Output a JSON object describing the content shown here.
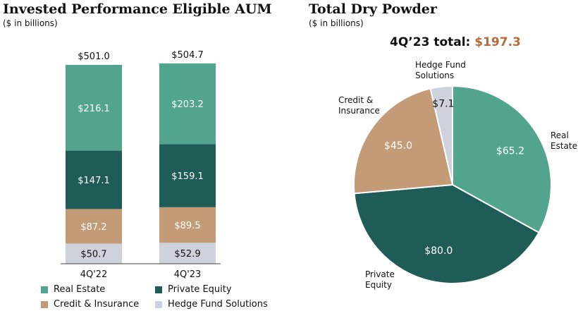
{
  "colors": {
    "real_estate": "#52a48e",
    "private_equity": "#1f5c57",
    "credit_insurance": "#c39b77",
    "hedge_fund": "#cdd2dc",
    "highlight": "#b86a3c"
  },
  "chart_data": [
    {
      "type": "bar",
      "stacked": true,
      "title": "Invested Performance Eligible AUM",
      "subtitle": "($ in billions)",
      "categories": [
        "4Q'22",
        "4Q'23"
      ],
      "totals": [
        "$501.0",
        "$504.7"
      ],
      "series": [
        {
          "name": "Hedge Fund Solutions",
          "key": "hedge_fund",
          "values": [
            50.7,
            52.9
          ],
          "labels": [
            "$50.7",
            "$52.9"
          ]
        },
        {
          "name": "Credit & Insurance",
          "key": "credit_insurance",
          "values": [
            87.2,
            89.5
          ],
          "labels": [
            "$87.2",
            "$89.5"
          ]
        },
        {
          "name": "Private Equity",
          "key": "private_equity",
          "values": [
            147.1,
            159.1
          ],
          "labels": [
            "$147.1",
            "$159.1"
          ]
        },
        {
          "name": "Real Estate",
          "key": "real_estate",
          "values": [
            216.1,
            203.2
          ],
          "labels": [
            "$216.1",
            "$203.2"
          ]
        }
      ],
      "legend": {
        "placement": "bottom",
        "items": [
          {
            "label": "Real Estate",
            "key": "real_estate"
          },
          {
            "label": "Private Equity",
            "key": "private_equity"
          },
          {
            "label": "Credit & Insurance",
            "key": "credit_insurance"
          },
          {
            "label": "Hedge Fund Solutions",
            "key": "hedge_fund"
          }
        ]
      },
      "grid": false
    },
    {
      "type": "pie",
      "title": "Total Dry Powder",
      "subtitle": "($ in billions)",
      "total_prefix": "4Q’23 total: ",
      "total_value": "$197.3",
      "slices": [
        {
          "name": "Real Estate",
          "key": "real_estate",
          "value": 65.2,
          "label": "$65.2"
        },
        {
          "name": "Private Equity",
          "key": "private_equity",
          "value": 80.0,
          "label": "$80.0"
        },
        {
          "name": "Credit & Insurance",
          "key": "credit_insurance",
          "value": 45.0,
          "label": "$45.0"
        },
        {
          "name": "Hedge Fund Solutions",
          "key": "hedge_fund",
          "value": 7.1,
          "label": "$7.1"
        }
      ],
      "category_labels": [
        {
          "key": "real_estate",
          "lines": [
            "Real",
            "Estate"
          ]
        },
        {
          "key": "private_equity",
          "lines": [
            "Private",
            "Equity"
          ]
        },
        {
          "key": "credit_insurance",
          "lines": [
            "Credit &",
            "Insurance"
          ]
        },
        {
          "key": "hedge_fund",
          "lines": [
            "Hedge Fund",
            "Solutions"
          ]
        }
      ]
    }
  ]
}
